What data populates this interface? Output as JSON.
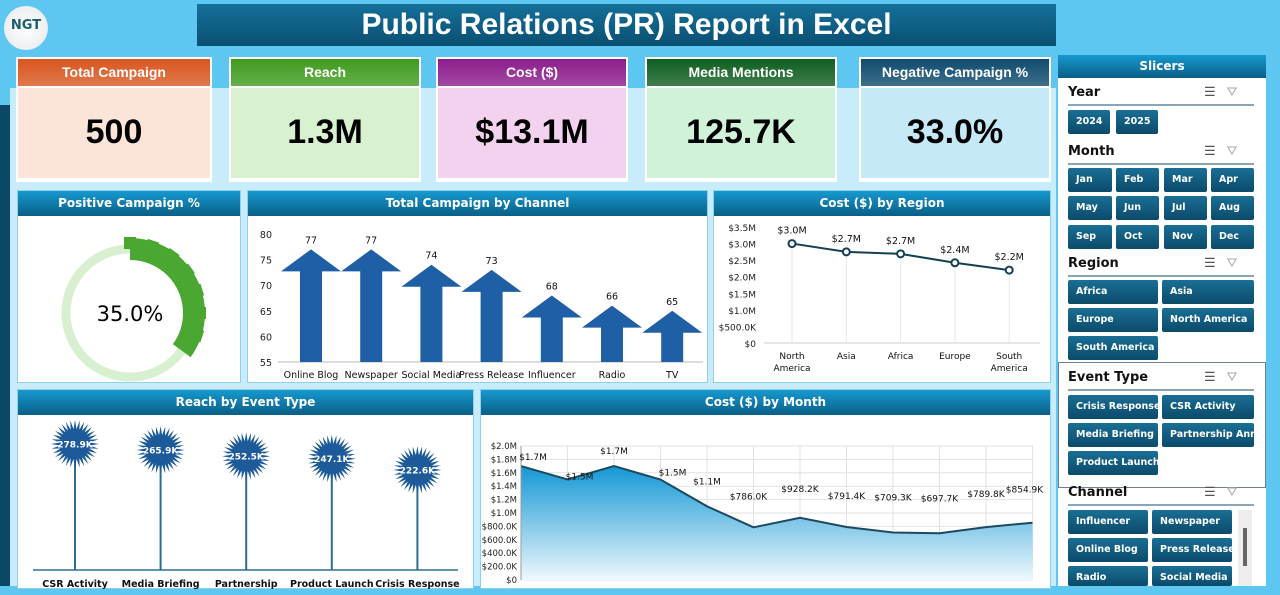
{
  "title": "Public Relations (PR) Report in Excel",
  "logo": "NGT",
  "kpis": [
    {
      "label": "Total Campaign",
      "value": "500",
      "header_color": "#d9561f",
      "body_color": "#fce4d8"
    },
    {
      "label": "Reach",
      "value": "1.3M",
      "header_color": "#3f9b1d",
      "body_color": "#d8f2d0"
    },
    {
      "label": "Cost ($)",
      "value": "$13.1M",
      "header_color": "#8c1c8c",
      "body_color": "#f2d2ef"
    },
    {
      "label": "Media Mentions",
      "value": "125.7K",
      "header_color": "#0f5e20",
      "body_color": "#d0f2d8"
    },
    {
      "label": "Negative Campaign %",
      "value": "33.0%",
      "header_color": "#0f4b6e",
      "body_color": "#c6e9f8"
    }
  ],
  "panels": {
    "positive": "Positive Campaign %",
    "channel": "Total Campaign by Channel",
    "region": "Cost ($) by Region",
    "reach": "Reach by Event Type",
    "month": "Cost ($) by Month"
  },
  "chart_data": [
    {
      "type": "pie",
      "title": "Positive Campaign %",
      "value": 35.0,
      "label": "35.0%",
      "colors": [
        "#4aa832",
        "#d8f0d0"
      ]
    },
    {
      "type": "bar",
      "title": "Total Campaign by Channel",
      "categories": [
        "Online Blog",
        "Newspaper",
        "Social Media",
        "Press Release",
        "Influencer",
        "Radio",
        "TV"
      ],
      "values": [
        77,
        77,
        74,
        73,
        68,
        66,
        65
      ],
      "ylim": [
        55,
        80
      ],
      "yticks": [
        "55",
        "60",
        "65",
        "70",
        "75",
        "80"
      ]
    },
    {
      "type": "line",
      "title": "Cost ($) by Region",
      "categories": [
        "North America",
        "Asia",
        "Africa",
        "Europe",
        "South America"
      ],
      "values": [
        3.0,
        2.75,
        2.69,
        2.42,
        2.2
      ],
      "labels": [
        "$3.0M",
        "$2.7M",
        "$2.7M",
        "$2.4M",
        "$2.2M"
      ],
      "ylim": [
        0,
        3.5
      ],
      "yticks": [
        "$0",
        "$500.0K",
        "$1.0M",
        "$1.5M",
        "$2.0M",
        "$2.5M",
        "$3.0M",
        "$3.5M"
      ],
      "unit": "$M"
    },
    {
      "type": "scatter",
      "title": "Reach by Event Type",
      "categories": [
        "CSR Activity",
        "Media Briefing",
        "Partnership",
        "Product Launch",
        "Crisis Response"
      ],
      "values": [
        278.9,
        265.9,
        252.5,
        247.1,
        222.6
      ],
      "labels": [
        "278.9K",
        "265.9K",
        "252.5K",
        "247.1K",
        "222.6K"
      ],
      "unit": "K"
    },
    {
      "type": "area",
      "title": "Cost ($) by Month",
      "values": [
        1.7,
        1.5,
        1.7,
        1.5,
        1.1,
        0.786,
        0.9282,
        0.7914,
        0.7093,
        0.6977,
        0.7898,
        0.8549
      ],
      "labels": [
        "$1.7M",
        "$1.5M",
        "$1.7M",
        "$1.5M",
        "$1.1M",
        "$786.0K",
        "$928.2K",
        "$791.4K",
        "$709.3K",
        "$697.7K",
        "$789.8K",
        "$854.9K"
      ],
      "ylim": [
        0,
        2.0
      ],
      "yticks": [
        "$0",
        "$200.0K",
        "$400.0K",
        "$600.0K",
        "$800.0K",
        "$1.0M",
        "$1.2M",
        "$1.4M",
        "$1.6M",
        "$1.8M",
        "$2.0M"
      ],
      "unit": "$M"
    }
  ],
  "slicers": {
    "title": "Slicers",
    "groups": [
      {
        "name": "Year",
        "items": [
          "2024",
          "2025"
        ]
      },
      {
        "name": "Month",
        "items": [
          "Jan",
          "Feb",
          "Mar",
          "Apr",
          "May",
          "Jun",
          "Jul",
          "Aug",
          "Sep",
          "Oct",
          "Nov",
          "Dec"
        ]
      },
      {
        "name": "Region",
        "items": [
          "Africa",
          "Asia",
          "Europe",
          "North America",
          "South America"
        ]
      },
      {
        "name": "Event Type",
        "items": [
          "Crisis Response",
          "CSR Activity",
          "Media Briefing",
          "Partnership Ann...",
          "Product Launch"
        ]
      },
      {
        "name": "Channel",
        "items": [
          "Influencer",
          "Newspaper",
          "Online Blog",
          "Press Release",
          "Radio",
          "Social Media"
        ]
      }
    ]
  }
}
